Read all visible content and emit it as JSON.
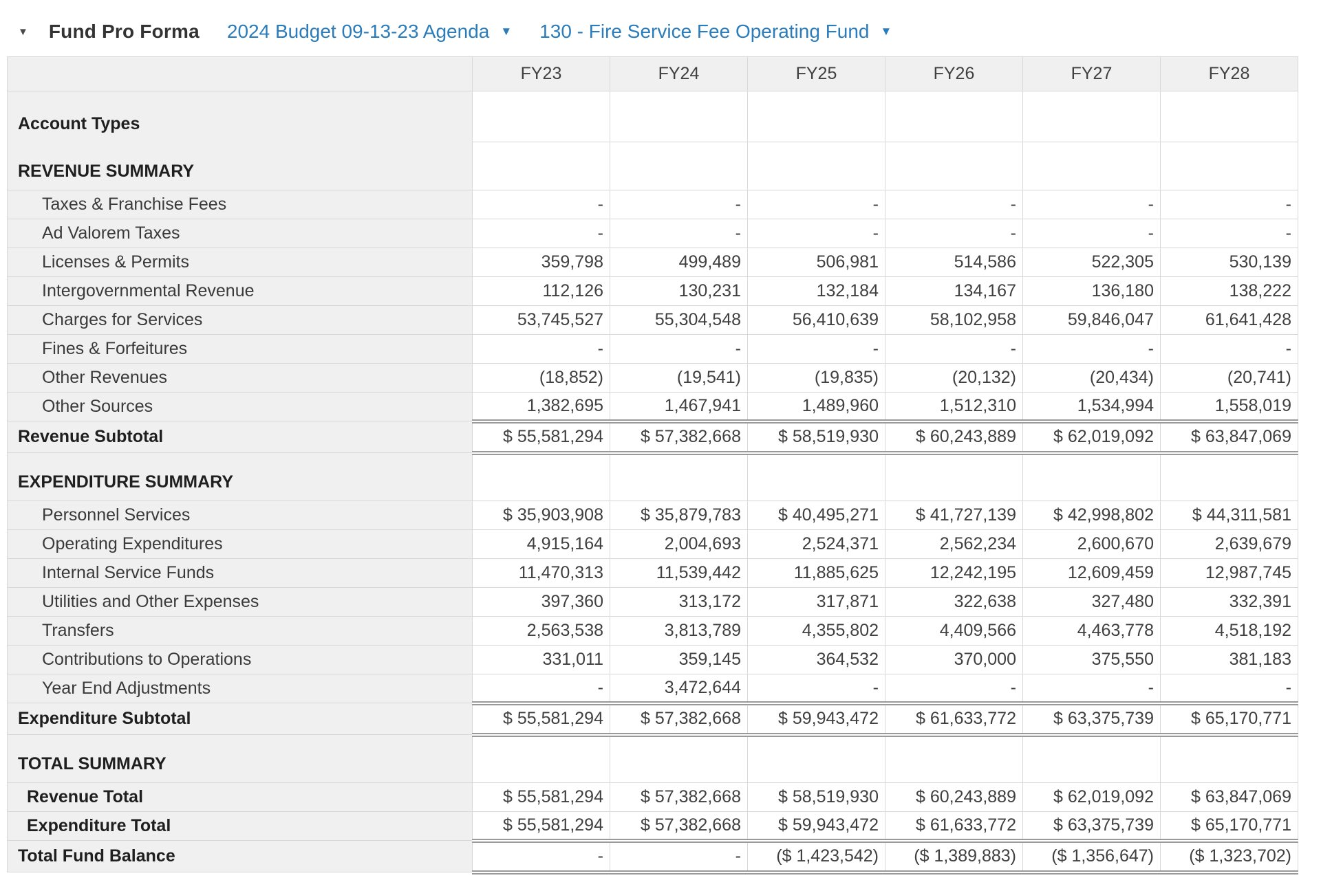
{
  "header": {
    "collapse_icon": "triangle-down",
    "title": "Fund Pro Forma",
    "menu1": {
      "label": "2024 Budget 09-13-23 Agenda",
      "caret": "triangle-down"
    },
    "menu2": {
      "label": "130 - Fire Service Fee Operating Fund",
      "caret": "triangle-down"
    },
    "link_color": "#2b7cba"
  },
  "table": {
    "corner_header": "",
    "columns": [
      "FY23",
      "FY24",
      "FY25",
      "FY26",
      "FY27",
      "FY28"
    ],
    "rows": [
      {
        "label": "Account Types",
        "type": "first_section",
        "values": [
          "",
          "",
          "",
          "",
          "",
          ""
        ]
      },
      {
        "label": "REVENUE SUMMARY",
        "type": "section",
        "values": [
          "",
          "",
          "",
          "",
          "",
          ""
        ]
      },
      {
        "label": "Taxes & Franchise Fees",
        "type": "item",
        "values": [
          "-",
          "-",
          "-",
          "-",
          "-",
          "-"
        ]
      },
      {
        "label": "Ad Valorem Taxes",
        "type": "item",
        "values": [
          "-",
          "-",
          "-",
          "-",
          "-",
          "-"
        ]
      },
      {
        "label": "Licenses & Permits",
        "type": "item",
        "values": [
          "359,798",
          "499,489",
          "506,981",
          "514,586",
          "522,305",
          "530,139"
        ]
      },
      {
        "label": "Intergovernmental Revenue",
        "type": "item",
        "values": [
          "112,126",
          "130,231",
          "132,184",
          "134,167",
          "136,180",
          "138,222"
        ]
      },
      {
        "label": "Charges for Services",
        "type": "item",
        "values": [
          "53,745,527",
          "55,304,548",
          "56,410,639",
          "58,102,958",
          "59,846,047",
          "61,641,428"
        ]
      },
      {
        "label": "Fines & Forfeitures",
        "type": "item",
        "values": [
          "-",
          "-",
          "-",
          "-",
          "-",
          "-"
        ]
      },
      {
        "label": "Other Revenues",
        "type": "item",
        "values": [
          "(18,852)",
          "(19,541)",
          "(19,835)",
          "(20,132)",
          "(20,434)",
          "(20,741)"
        ]
      },
      {
        "label": "Other Sources",
        "type": "item",
        "values": [
          "1,382,695",
          "1,467,941",
          "1,489,960",
          "1,512,310",
          "1,534,994",
          "1,558,019"
        ]
      },
      {
        "label": "Revenue Subtotal",
        "type": "subtotal",
        "rules": "both",
        "values": [
          "$ 55,581,294",
          "$ 57,382,668",
          "$ 58,519,930",
          "$ 60,243,889",
          "$ 62,019,092",
          "$ 63,847,069"
        ]
      },
      {
        "label": "EXPENDITURE SUMMARY",
        "type": "section",
        "values": [
          "",
          "",
          "",
          "",
          "",
          ""
        ]
      },
      {
        "label": "Personnel Services",
        "type": "item",
        "values": [
          "$ 35,903,908",
          "$ 35,879,783",
          "$ 40,495,271",
          "$ 41,727,139",
          "$ 42,998,802",
          "$ 44,311,581"
        ]
      },
      {
        "label": "Operating Expenditures",
        "type": "item",
        "values": [
          "4,915,164",
          "2,004,693",
          "2,524,371",
          "2,562,234",
          "2,600,670",
          "2,639,679"
        ]
      },
      {
        "label": "Internal Service Funds",
        "type": "item",
        "values": [
          "11,470,313",
          "11,539,442",
          "11,885,625",
          "12,242,195",
          "12,609,459",
          "12,987,745"
        ]
      },
      {
        "label": "Utilities and Other Expenses",
        "type": "item",
        "values": [
          "397,360",
          "313,172",
          "317,871",
          "322,638",
          "327,480",
          "332,391"
        ]
      },
      {
        "label": "Transfers",
        "type": "item",
        "values": [
          "2,563,538",
          "3,813,789",
          "4,355,802",
          "4,409,566",
          "4,463,778",
          "4,518,192"
        ]
      },
      {
        "label": "Contributions to Operations",
        "type": "item",
        "values": [
          "331,011",
          "359,145",
          "364,532",
          "370,000",
          "375,550",
          "381,183"
        ]
      },
      {
        "label": "Year End Adjustments",
        "type": "item",
        "values": [
          "-",
          "3,472,644",
          "-",
          "-",
          "-",
          "-"
        ]
      },
      {
        "label": "Expenditure Subtotal",
        "type": "subtotal",
        "rules": "both",
        "values": [
          "$ 55,581,294",
          "$ 57,382,668",
          "$ 59,943,472",
          "$ 61,633,772",
          "$ 63,375,739",
          "$ 65,170,771"
        ]
      },
      {
        "label": "TOTAL SUMMARY",
        "type": "section",
        "values": [
          "",
          "",
          "",
          "",
          "",
          ""
        ]
      },
      {
        "label": "Revenue Total",
        "type": "total_item",
        "values": [
          "$ 55,581,294",
          "$ 57,382,668",
          "$ 58,519,930",
          "$ 60,243,889",
          "$ 62,019,092",
          "$ 63,847,069"
        ]
      },
      {
        "label": "Expenditure Total",
        "type": "total_item",
        "rules": "bottom",
        "values": [
          "$ 55,581,294",
          "$ 57,382,668",
          "$ 59,943,472",
          "$ 61,633,772",
          "$ 63,375,739",
          "$ 65,170,771"
        ]
      },
      {
        "label": "Total Fund Balance",
        "type": "grand",
        "rules": "bottom",
        "values": [
          "-",
          "-",
          "($ 1,423,542)",
          "($ 1,389,883)",
          "($ 1,356,647)",
          "($ 1,323,702)"
        ]
      }
    ]
  }
}
